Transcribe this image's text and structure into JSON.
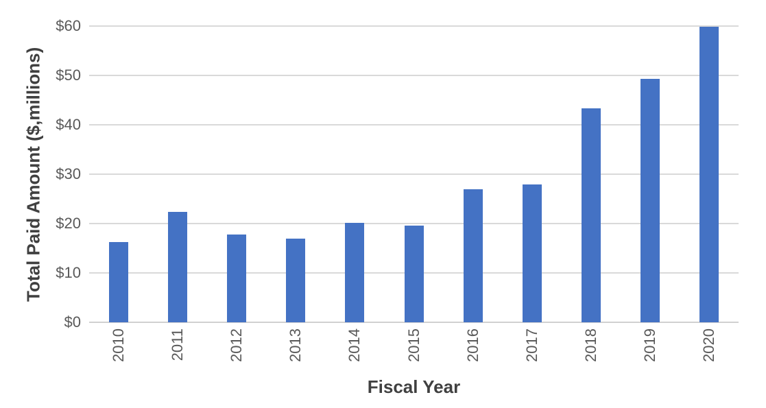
{
  "chart_data": {
    "type": "bar",
    "title": "",
    "categories": [
      "2010",
      "2011",
      "2012",
      "2013",
      "2014",
      "2015",
      "2016",
      "2017",
      "2018",
      "2019",
      "2020"
    ],
    "values": [
      16.2,
      22.4,
      17.8,
      16.9,
      20.1,
      19.6,
      27.0,
      27.9,
      43.3,
      49.3,
      59.8
    ],
    "xlabel": "Fiscal Year",
    "ylabel": "Total Paid Amount ($,millions)",
    "ylim": [
      0,
      60
    ],
    "yticks": [
      0,
      10,
      20,
      30,
      40,
      50,
      60
    ],
    "ytick_labels": [
      "$0",
      "$10",
      "$20",
      "$30",
      "$40",
      "$50",
      "$60"
    ],
    "grid": true,
    "legend": false,
    "colors": {
      "bar": "#4472C4",
      "gridline": "#D9D9D9",
      "axis_line": "#D0D0D0",
      "tick_label": "#595959",
      "axis_title": "#404040"
    }
  }
}
